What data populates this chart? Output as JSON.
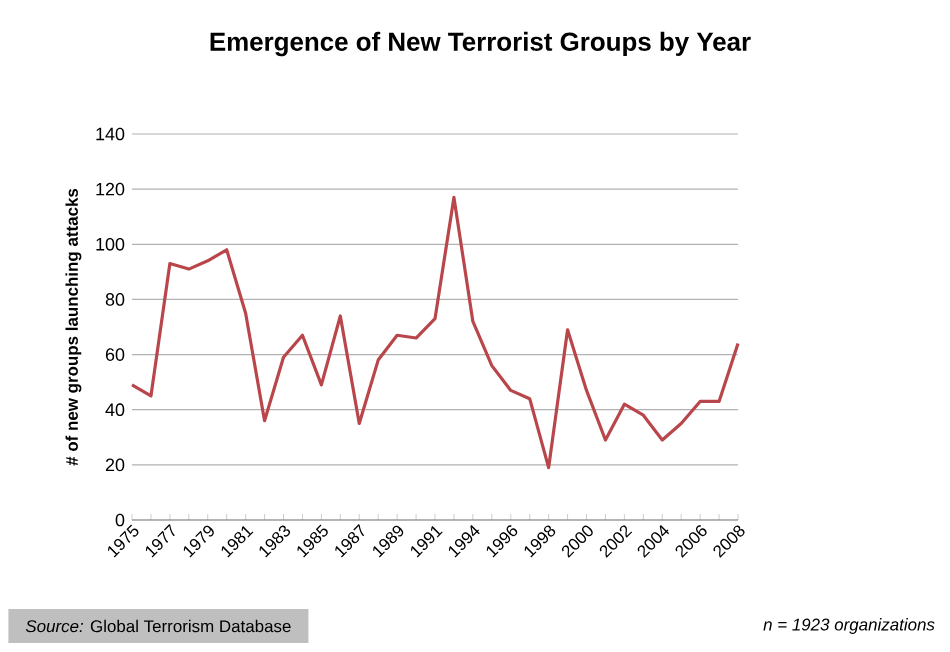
{
  "chart_data": {
    "type": "line",
    "title": "Emergence of New Terrorist Groups by Year",
    "ylabel": "# of new groups launching attacks",
    "categories": [
      "1975",
      null,
      "1977",
      null,
      "1979",
      null,
      "1981",
      null,
      "1983",
      null,
      "1985",
      null,
      "1987",
      null,
      "1989",
      null,
      "1991",
      null,
      "1994",
      null,
      "1996",
      null,
      "1998",
      null,
      "2000",
      null,
      "2002",
      null,
      "2004",
      null,
      "2006",
      null,
      "2008"
    ],
    "series": [
      {
        "color": "#b9464b",
        "values": [
          49,
          45,
          93,
          91,
          94,
          98,
          75,
          36,
          59,
          67,
          49,
          74,
          35,
          58,
          67,
          66,
          73,
          117,
          72,
          56,
          47,
          44,
          19,
          69,
          47,
          29,
          42,
          38,
          29,
          35,
          43,
          43,
          64
        ]
      }
    ],
    "ylim": [
      0,
      140
    ],
    "yticks": [
      0,
      20,
      40,
      60,
      80,
      100,
      120,
      140
    ],
    "grid": "y",
    "marker": "none",
    "line_style": "solid",
    "annotations": [
      "*Source:* Global Terrorism Database",
      "n = 1923 organizations"
    ]
  }
}
